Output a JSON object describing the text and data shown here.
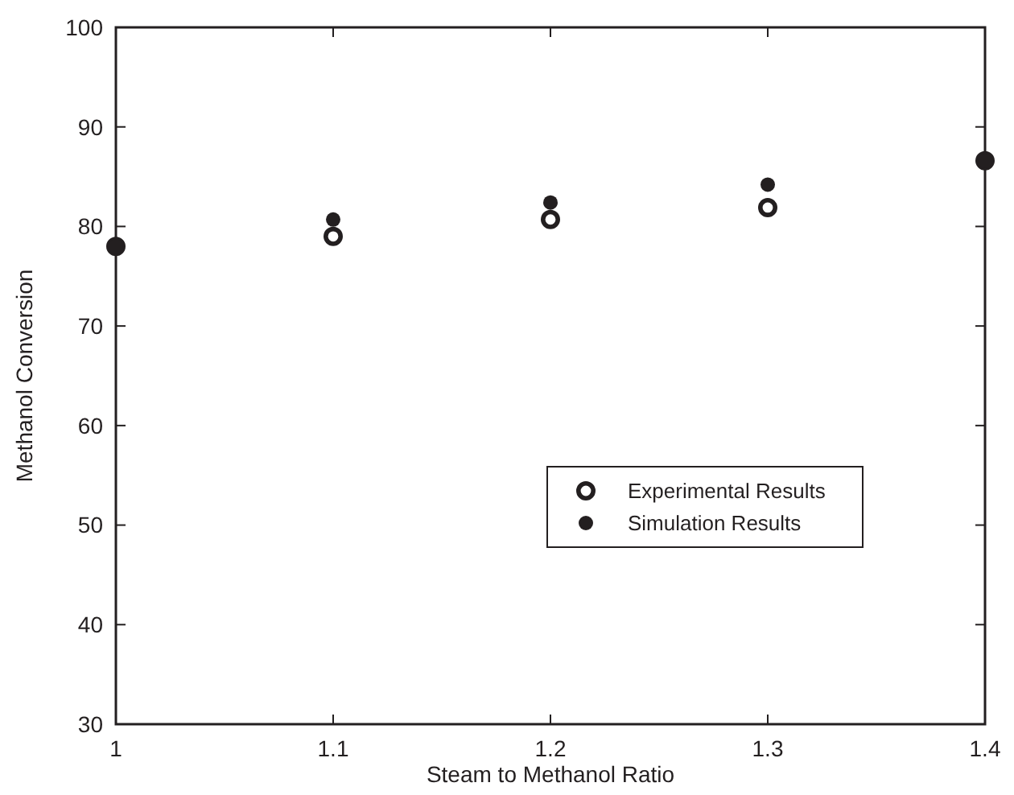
{
  "chart_data": {
    "type": "scatter",
    "xlabel": "Steam to Methanol Ratio",
    "ylabel": "Methanol Conversion",
    "x": [
      1,
      1.1,
      1.2,
      1.3,
      1.4
    ],
    "series": [
      {
        "name": "Experimental Results",
        "color": "#231f20",
        "values": [
          78,
          79,
          80.7,
          81.9,
          86.6
        ]
      },
      {
        "name": "Simulation Results",
        "color": "#231f20",
        "values": [
          78,
          80.7,
          82.4,
          84.2,
          86.6
        ]
      }
    ],
    "xlim": [
      1,
      1.4
    ],
    "xticks": [
      1,
      1.1,
      1.2,
      1.3,
      1.4
    ],
    "ylim": [
      30,
      100
    ],
    "yticks": [
      30,
      40,
      50,
      60,
      70,
      80,
      90,
      100
    ],
    "grid": false,
    "marker": "circle",
    "legend": "bottom right"
  }
}
